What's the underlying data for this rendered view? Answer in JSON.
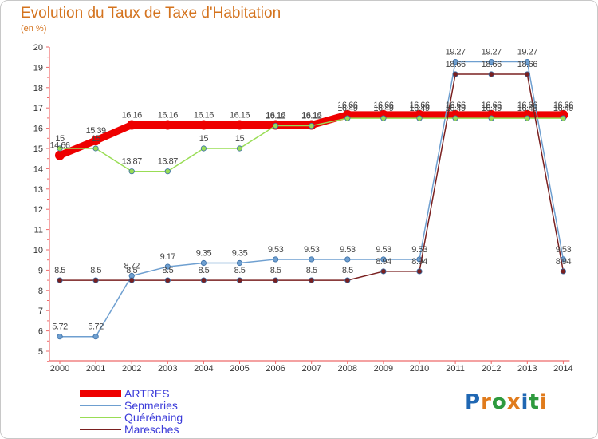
{
  "title": "Evolution du Taux de Taxe d'Habitation",
  "unit_label": "(en %)",
  "logo": {
    "text": "Proxiti",
    "letters": [
      "P",
      "r",
      "o",
      "x",
      "i",
      "t",
      "i"
    ],
    "colors": [
      "#1f67b3",
      "#e07b1c",
      "#2e9a3e",
      "#e07b1c",
      "#1f67b3",
      "#2e9a3e",
      "#e07b1c"
    ]
  },
  "chart_data": {
    "type": "line",
    "title": "Evolution du Taux de Taxe d'Habitation",
    "ylabel": "(en %)",
    "xlabel": "",
    "ylim": [
      5,
      20
    ],
    "yticks": [
      "5",
      "6",
      "7",
      "8",
      "9",
      "10",
      "11",
      "12",
      "13",
      "14",
      "15",
      "16",
      "17",
      "18",
      "19",
      "20"
    ],
    "x": [
      "2000",
      "2001",
      "2002",
      "2003",
      "2004",
      "2005",
      "2006",
      "2007",
      "2008",
      "2009",
      "2010",
      "2011",
      "2012",
      "2013",
      "2014"
    ],
    "grid": false,
    "legend_position": "bottom-left",
    "series": [
      {
        "name": "ARTRES",
        "color": "#ee0000",
        "emphasis": true,
        "values": [
          14.66,
          15.39,
          16.16,
          16.16,
          16.16,
          16.16,
          16.16,
          16.16,
          16.66,
          16.66,
          16.66,
          16.66,
          16.66,
          16.66,
          16.66
        ],
        "labels": [
          "14.66",
          "15.39",
          "16.16",
          "16.16",
          "16.16",
          "16.16",
          "16.16",
          "16.16",
          "16.66",
          "16.66",
          "16.66",
          "16.66",
          "16.66",
          "16.66",
          "16.66"
        ]
      },
      {
        "name": "Sepmeries",
        "color": "#6e9fd0",
        "values": [
          5.72,
          5.72,
          8.72,
          9.17,
          9.35,
          9.35,
          9.53,
          9.53,
          9.53,
          9.53,
          9.53,
          19.27,
          19.27,
          19.27,
          9.53
        ],
        "labels": [
          "5.72",
          "5.72",
          "8.72",
          "9.17",
          "9.35",
          "9.35",
          "9.53",
          "9.53",
          "9.53",
          "9.53",
          "9.53",
          "19.27",
          "19.27",
          "19.27",
          "9.53"
        ]
      },
      {
        "name": "Quérénaing",
        "color": "#99dd55",
        "values": [
          15,
          15,
          13.87,
          13.87,
          15,
          15,
          16.12,
          16.12,
          16.49,
          16.49,
          16.49,
          16.49,
          16.49,
          16.49,
          16.49
        ],
        "labels": [
          "15",
          "15",
          "13.87",
          "13.87",
          "15",
          "15",
          "16.12",
          "16.12",
          "16.49",
          "16.49",
          "16.49",
          "16.49",
          "16.49",
          "16.49",
          "16.49"
        ]
      },
      {
        "name": "Maresches",
        "color": "#7a2020",
        "values": [
          8.5,
          8.5,
          8.5,
          8.5,
          8.5,
          8.5,
          8.5,
          8.5,
          8.5,
          8.94,
          8.94,
          18.66,
          18.66,
          18.66,
          8.94
        ],
        "labels": [
          "8.5",
          "8.5",
          "8.5",
          "8.5",
          "8.5",
          "8.5",
          "8.5",
          "8.5",
          "8.5",
          "8.94",
          "8.94",
          "18.66",
          "18.66",
          "18.66",
          "8.94"
        ]
      }
    ]
  }
}
